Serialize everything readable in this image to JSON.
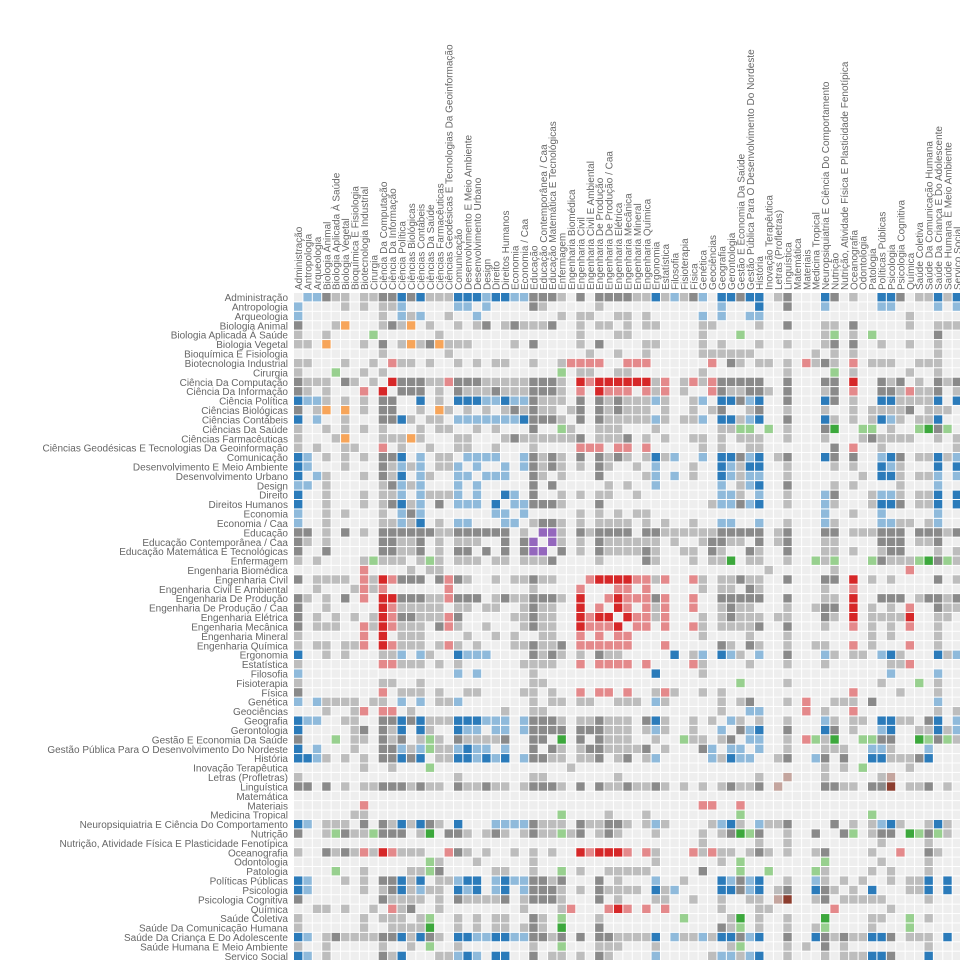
{
  "chart_data": {
    "type": "heatmap",
    "title": "",
    "labels": [
      "Administração",
      "Antropologia",
      "Arqueologia",
      "Biologia Animal",
      "Biologia Aplicada À Saúde",
      "Biologia Vegetal",
      "Bioquímica E Fisiologia",
      "Biotecnologia Industrial",
      "Cirurgia",
      "Ciência Da Computação",
      "Ciência Da Informação",
      "Ciência Política",
      "Ciências Biológicas",
      "Ciências Contábeis",
      "Ciências Da Saúde",
      "Ciências Farmacêuticas",
      "Ciências Geodésicas E Tecnologias Da Geoinformação",
      "Comunicação",
      "Desenvolvimento E Meio Ambiente",
      "Desenvolvimento Urbano",
      "Design",
      "Direito",
      "Direitos Humanos",
      "Economia",
      "Economia / Caa",
      "Educação",
      "Educação Contemporânea / Caa",
      "Educação Matemática E Tecnológicas",
      "Enfermagem",
      "Engenharia Biomédica",
      "Engenharia Civil",
      "Engenharia Civil E Ambiental",
      "Engenharia De Produção",
      "Engenharia De Produção / Caa",
      "Engenharia Elétrica",
      "Engenharia Mecânica",
      "Engenharia Mineral",
      "Engenharia Química",
      "Ergonomia",
      "Estatística",
      "Filosofia",
      "Fisioterapia",
      "Física",
      "Genética",
      "Geociências",
      "Geografia",
      "Gerontologia",
      "Gestão E Economia Da Saúde",
      "Gestão Pública Para O Desenvolvimento Do Nordeste",
      "História",
      "Inovação Terapêutica",
      "Letras (Profletras)",
      "Linguística",
      "Matemática",
      "Materiais",
      "Medicina Tropical",
      "Neuropsiquiatria E Ciência Do Comportamento",
      "Nutrição",
      "Nutrição, Atividade Física E Plasticidade Fenotípica",
      "Oceanografia",
      "Odontologia",
      "Patologia",
      "Políticas Públicas",
      "Psicologia",
      "Psicologia Cognitiva",
      "Química",
      "Saúde Coletiva",
      "Saúde Da Comunicação Humana",
      "Saúde Da Criança E Do Adolescente",
      "Saúde Humana E Meio Ambiente",
      "Serviço Social"
    ],
    "symmetric": true,
    "cell_codes": {
      ".": "#eeeeee",
      "g": "#bdbdbd",
      "G": "#8a8a8a",
      "b": "#8fbadb",
      "B": "#2b7bba",
      "r": "#e4898b",
      "R": "#d62728",
      "o": "#f7a55a",
      "v": "#98d08f",
      "V": "#3ca83c",
      "p": "#b59bd6",
      "P": "#9467bd",
      "k": "#c4a59e",
      "K": "#8c3d2e"
    },
    "rows": [
      ".bbGgg.ggGGBGBgggBBBbBBb",
      "b....g.g.ggb.....bb.b...",
      "b........g.bgb..g..b....",
      "G...go...gGgo.g..g.gG.gG",
      "g..g....v......g........",
      "gg.o...g.G.gogGoggg....g",
      ".........g......g.......",
      "gg...g..g.rgg.g..g.g.gg.",
      "g...v..g.g..............",
      "Gggg.Gg.g.RGGGggrGGGgggg",
      "Gg.g...r.R.GGG.g.GgggGgg",
      "Bbbg.g.g.GG..B.g.BBBbbBb",
      "G.go.o.g.GG..g.og.g.g.gG",
      "B.b..g...GGBg.gg.bbbbbbb",
      "g..g.g.g.g...g.gg..g.g..",
      "g...go...gggog...gg...gG",
      "g.g..gg..r.g..g..gg..g..",
      "Bb.g.g.g.GGB.b.gg.bbbb..",
      "Bb...g...Ggbgb.ggb.b..b.",
      "B.bg...g.GgB.bg..bb.bbb.",
      "bb.g.....gGbgb...b.b....",
      "B..g...g.ggb.bgggb.b..Bb",
      "B..g...g.gGBgb.G.bbb.B.b",
      "b..g.g...g.bGb.......bb.",
      "b..g.....ggbgB.g.bb...bb.gGGg.g.gggg.g.g..g..bb.",
      "GG.g.G.g.GGGGGGggGGGGGG.g.PPg.GgGGGG.GGggggggGGG",
      "Gg.g.....GGggG.g.ggg..G.GP.Pg.g.Ggggggg.g..gGGgg",
      "G..G.....GGggG.g.GG.G.G.GPP.G.g.GggggGg..gg.Gg..",
      "g.g....gvggg.gvg.ggg.gg.gggG....g....Gg...g.ggV.",
      ".......r....g.gg................................",
      "G.gggg.rgRrGGG.GrGg..g.ggGgg...rRRRRrrgr..rg.ggG",
      "..g...grgr......r........g....r...rr.r.....g.gg.",
      "Gg.g.G.r.RRGGGggrGGG.gGggGGGg.R..rRrrrGr..r..GGG",
      "G..g.....Rrggggg.gg.gg..gGgg..R.r.Rr.rgr..r..gGg",
      "G.g.g.g.gRrGGgggrG.....ggGgg..RrRR.Rrrgr...g.gGg",
      "G.ggg..rgRrggg.Grg..g...gGgg..RrrrR.rr.r..rg.ggg",
      "g......r.R.ggg....g..g.g..gg..r.r.rr.......g....",
      "g.gg.ggr.Rrggg.grg.g...ggGggG.rrrrrr...r.....Gg.",
      "B..g.g...ggb.bg..Bbbb....GgGg.g.Ggg.....B.gb.Bbg",
      "g........rrggg.g.g......gggg..r.rrrr.r....rg....",
      "b................b.b.....g............B....g....",
      "g........gg..g...........gg....................v",
      "G........r.ggg.g..gg....gg.g..r.rr.r..grg..g.g..",
      "b.bgggg.gg.b.b.ggb.......g.gg.gg..ggg.bg.....g.g",
      "...g..gr.rr.g.........g..gg..................g..",
      "Bbb..gg..GGBGBgggBBBbbb.bGGGg.ggGggg.GBg..g.g.bg",
      "B.....gG.GgB.Bg..Bbb.bb.bGGGG.GGGggg.gbg..g..b.G",
      "G...v.gg.GgG.gvg.GggggG..GG.V.G.Gggg..g..vgg.gG.",
      "B.b...g..GGbgbvggbBbb.b..G.Gg.gGGggggG.g...Gb.bb.b..g...ggg..bbg...b...",
      "BBbg.g.g.GGBGB.ggBBbBbB.bGGgg.ggG.gG.gb.....bgBbb..gG..bG.G..BBgggGB...",
      ".......g..g...v..............g..........................g.g.v....g.....",
      "g................g.......gg.......g..............g..k...g.....gk.......",
      "GG.G.g.ggGGGgGgg.GggGgg.gGGGg.G.GggGggGg.g.g.gGggG.k....GGgg.GGK.ggG.g.",
      ".......................................................................",
      ".......r...................................rr..r............................g..",
      "......gg....................v....g...g.........v.............v.........",
      "Bb.ggg.G.GgBgBGg.B...bbbbGggg.GggGGg.gbg....gbBg.bggG....G.g.gbBg..gBg.",
      "G..gvGggvGGG.gV.GGg.gGg.gGggvgG.gGg...g....g.gGVvG..g..G..Gv.gGG.VvGvg.",
      "...........................................g.....g..g.........g....g...",
      "g..GgGgrgRrggg..rGg.g..g.g.g..RrRRRr.rg...rgrgg.gGg.g..gG....g..r..Gg..",
      "..............vg...g.....g............g......g.v........v.....g....g...",
      "....v..g....ggvG.....gg..g..v.g..ggggg.....G...v..v....vg....g.g...g...",
      "Bb...g.g.GGBgB.ggbBB.bBbbGGgG...G.g...b..g...BbGbB..g..bg.g.g..g.ggB.B.",
      "Bb.....g.gGBgbgg.BbB.bB.bGGGg.g.Ggggg.Bgb....BBGbB.gG..BGg.g.B...ggB.B.",
      "G........Ggggg.g.GggggG.gGGGg...G.g...gg..g..g..gg.kK..gG.ggggg....g...",
      "..gg.g..g.rgG..g........g...gr...rRr.r.r.....g...gg......r.....g.......",
      "g......g.ggg.gv..g.g.gg..Gg.v...g........v....gV.g..g...V....gg..v.g...",
      "g......g..ggggV..g.g.gg.gGg.V...G............Ggv.g..g..gv....g...v.....",
      "Bb.gGggggGGBgBGg.BBbbBBbbGGgG.G.GGggggB.bggbgBBGbB..G..BGgGggBBG.ggg.B.",
      "g..g.....g..g.v..g.......g..v...ggg...g.......gv....g.g.G.g........g...",
      "Bb.g.....GgB...ggbBb.BB..G.gg.g.Gg....b.....gbbgbB..g...g.gggBBG...B..."
    ]
  }
}
